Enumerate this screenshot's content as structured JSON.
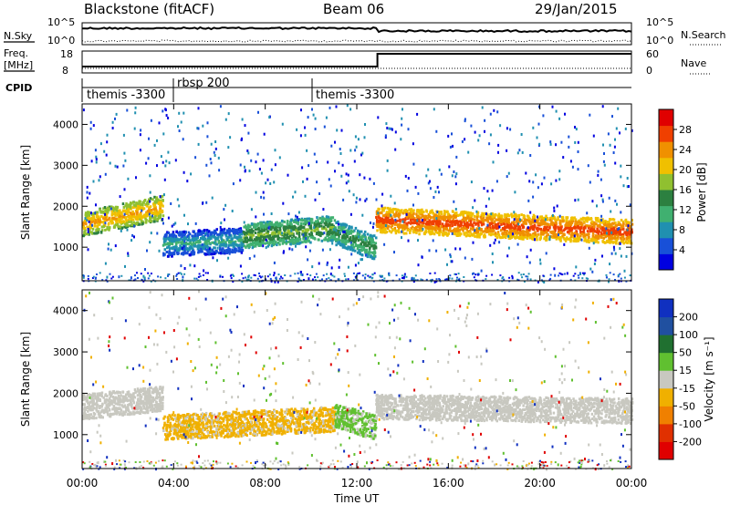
{
  "header": {
    "station": "Blackstone (fitACF)",
    "beam": "Beam 06",
    "date": "29/Jan/2015"
  },
  "noise_panel": {
    "left_label": "N.Sky",
    "right_label": "N.Search",
    "left_ticks": [
      "10^5",
      "10^0"
    ],
    "right_ticks": [
      "10^5",
      "10^0"
    ]
  },
  "freq_panel": {
    "left_label": "Freq.",
    "left_unit": "[MHz]",
    "right_label": "Nave",
    "left_ticks": [
      "18",
      "8"
    ],
    "right_ticks": [
      "60",
      "0"
    ]
  },
  "cpid": {
    "label": "CPID",
    "segments": [
      "themis -3300",
      "rbsp 200",
      "themis -3300"
    ]
  },
  "colors": {
    "power_scale": [
      "#0000e0",
      "#1850d8",
      "#2090b0",
      "#40b070",
      "#2c8040",
      "#90c030",
      "#f0c000",
      "#f09000",
      "#f04000",
      "#e00000"
    ],
    "velocity_scale": [
      "#1030c0",
      "#2050a0",
      "#207030",
      "#60c030",
      "#c8c8c0",
      "#f0b000",
      "#f08000",
      "#e03000",
      "#e00000"
    ]
  },
  "chart_data": [
    {
      "type": "heatmap",
      "title": "Power",
      "ylabel": "Slant Range [km]",
      "xlabel": "",
      "ylim": [
        180,
        4500
      ],
      "xlim": [
        "00:00",
        "24:00"
      ],
      "yticks": [
        "1000",
        "2000",
        "3000",
        "4000"
      ],
      "xticks": [
        "00:00",
        "04:00",
        "08:00",
        "12:00",
        "16:00",
        "20:00",
        "00:00"
      ],
      "colorbar": {
        "label": "Power [dB]",
        "ticks": [
          "4",
          "8",
          "12",
          "16",
          "20",
          "24",
          "28"
        ],
        "range": [
          0,
          30
        ]
      },
      "bands": [
        {
          "start_h": 0.0,
          "end_h": 3.5,
          "range_center_km": [
            1600,
            2000
          ],
          "power_db": 22
        },
        {
          "start_h": 3.5,
          "end_h": 7.0,
          "range_center_km": [
            1100,
            1200
          ],
          "power_db": 10
        },
        {
          "start_h": 7.0,
          "end_h": 11.0,
          "range_center_km": [
            1300,
            1500
          ],
          "power_db": 16
        },
        {
          "start_h": 11.0,
          "end_h": 12.8,
          "range_center_km": [
            1400,
            1000
          ],
          "power_db": 14
        },
        {
          "start_h": 12.8,
          "end_h": 24.0,
          "range_center_km": [
            1700,
            1400
          ],
          "power_db": 26
        }
      ]
    },
    {
      "type": "heatmap",
      "title": "Velocity",
      "ylabel": "Slant Range [km]",
      "xlabel": "Time UT",
      "ylim": [
        180,
        4500
      ],
      "xlim": [
        "00:00",
        "24:00"
      ],
      "yticks": [
        "1000",
        "2000",
        "3000",
        "4000"
      ],
      "xticks": [
        "00:00",
        "04:00",
        "08:00",
        "12:00",
        "16:00",
        "20:00",
        "00:00"
      ],
      "colorbar": {
        "label": "Velocity [m s⁻¹]",
        "ticks": [
          "200",
          "100",
          "50",
          "15",
          "-15",
          "-50",
          "-100",
          "-200"
        ],
        "range": [
          -250,
          250
        ]
      },
      "bands": [
        {
          "start_h": 0.0,
          "end_h": 3.5,
          "range_center_km": [
            1700,
            1900
          ],
          "velocity": 0
        },
        {
          "start_h": 3.5,
          "end_h": 11.0,
          "range_center_km": [
            1200,
            1400
          ],
          "velocity": -40
        },
        {
          "start_h": 11.0,
          "end_h": 12.8,
          "range_center_km": [
            1500,
            1200
          ],
          "velocity": 30
        },
        {
          "start_h": 12.8,
          "end_h": 24.0,
          "range_center_km": [
            1700,
            1600
          ],
          "velocity": 0
        }
      ]
    }
  ]
}
